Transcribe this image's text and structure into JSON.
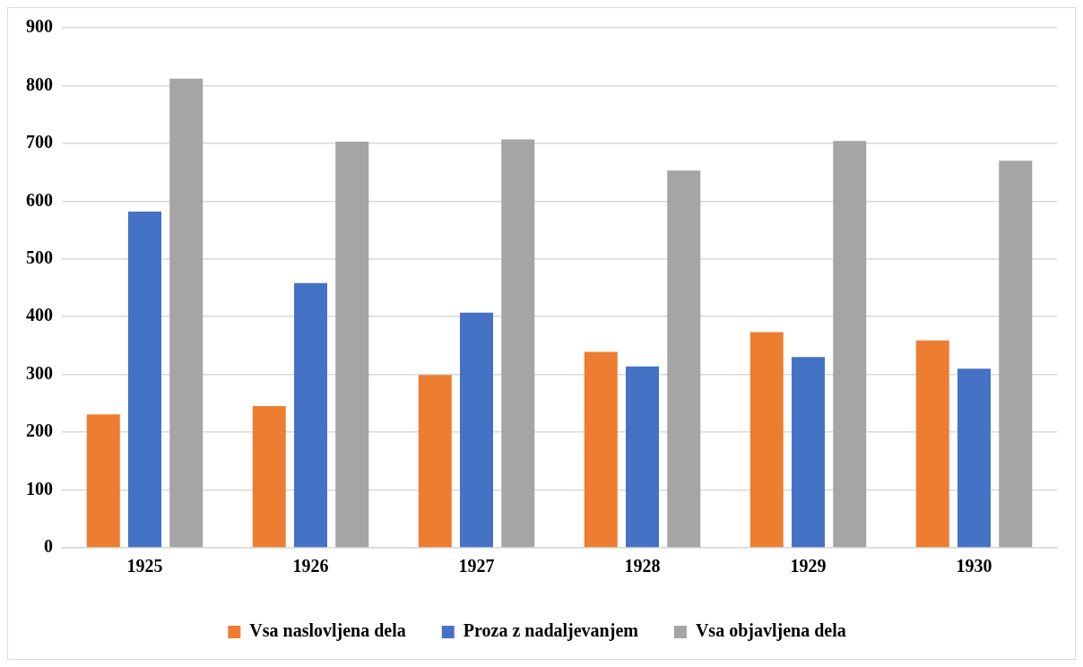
{
  "chart_data": {
    "type": "bar",
    "categories": [
      "1925",
      "1926",
      "1927",
      "1928",
      "1929",
      "1930"
    ],
    "series": [
      {
        "name": "Vsa naslovljena dela",
        "color": "#ed7d31",
        "values": [
          231,
          245,
          299,
          339,
          373,
          359
        ]
      },
      {
        "name": "Proza z nadaljevanjem",
        "color": "#4472c4",
        "values": [
          582,
          458,
          407,
          314,
          330,
          310
        ]
      },
      {
        "name": "Vsa objavljena dela",
        "color": "#a5a5a5",
        "values": [
          812,
          703,
          707,
          653,
          704,
          670
        ]
      }
    ],
    "ylim": [
      0,
      900
    ],
    "yticks": [
      0,
      100,
      200,
      300,
      400,
      500,
      600,
      700,
      800,
      900
    ],
    "grid": "y",
    "legend": "bottom"
  }
}
